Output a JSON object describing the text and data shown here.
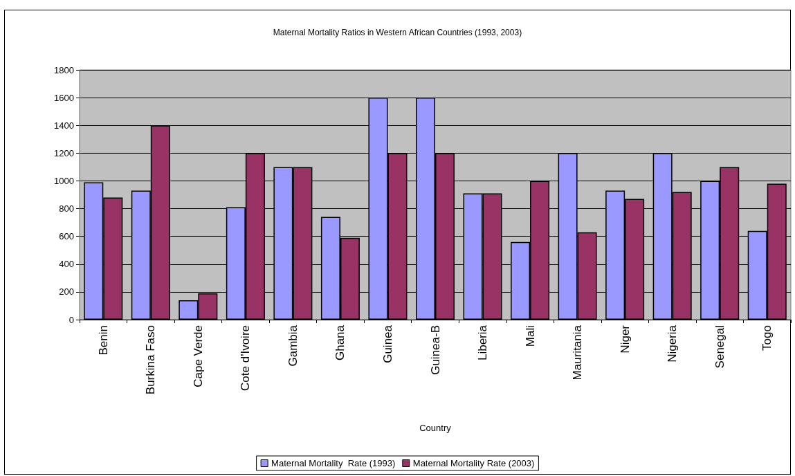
{
  "chart_data": {
    "type": "bar",
    "title": "Maternal Mortality Ratios in Western African Countries (1993, 2003)",
    "xlabel": "Country",
    "categories": [
      "Benin",
      "Burkina Faso",
      "Cape Verde",
      "Cote d'Ivoire",
      "Gambia",
      "Ghana",
      "Guinea",
      "Guinea-B",
      "Liberia",
      "Mali",
      "Mauritania",
      "Niger",
      "Nigeria",
      "Senegal",
      "Togo"
    ],
    "series": [
      {
        "name": "Maternal Mortality  Rate (1993)",
        "color": "#9999ff",
        "values": [
          990,
          930,
          140,
          810,
          1100,
          740,
          1600,
          1600,
          910,
          560,
          1200,
          930,
          1200,
          1000,
          640
        ]
      },
      {
        "name": "Maternal Mortality Rate (2003)",
        "color": "#993366",
        "values": [
          880,
          1400,
          190,
          1200,
          1100,
          590,
          1200,
          1200,
          910,
          1000,
          630,
          870,
          920,
          1100,
          980
        ]
      }
    ],
    "ylim": [
      0,
      1800
    ],
    "yticks": [
      0,
      200,
      400,
      600,
      800,
      1000,
      1200,
      1400,
      1600,
      1800
    ],
    "grid": "y",
    "legend": "bottom"
  }
}
